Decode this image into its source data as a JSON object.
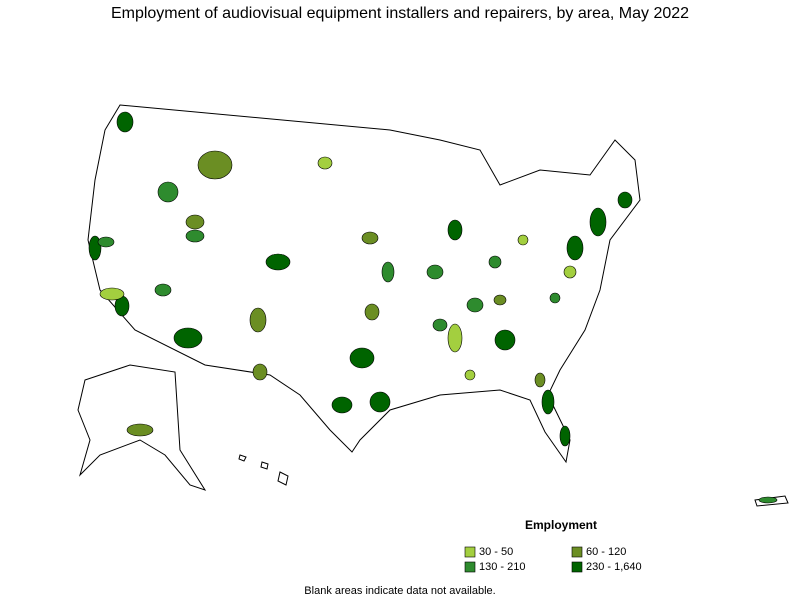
{
  "title": "Employment of audiovisual equipment installers and repairers, by area, May 2022",
  "legend": {
    "title": "Employment",
    "items": [
      {
        "label": "30 - 50",
        "color": "#a3cf3f"
      },
      {
        "label": "60 - 120",
        "color": "#6b8e23"
      },
      {
        "label": "130 - 210",
        "color": "#2e8b2e"
      },
      {
        "label": "230 - 1,640",
        "color": "#006400"
      }
    ]
  },
  "note": "Blank areas indicate data not available."
}
